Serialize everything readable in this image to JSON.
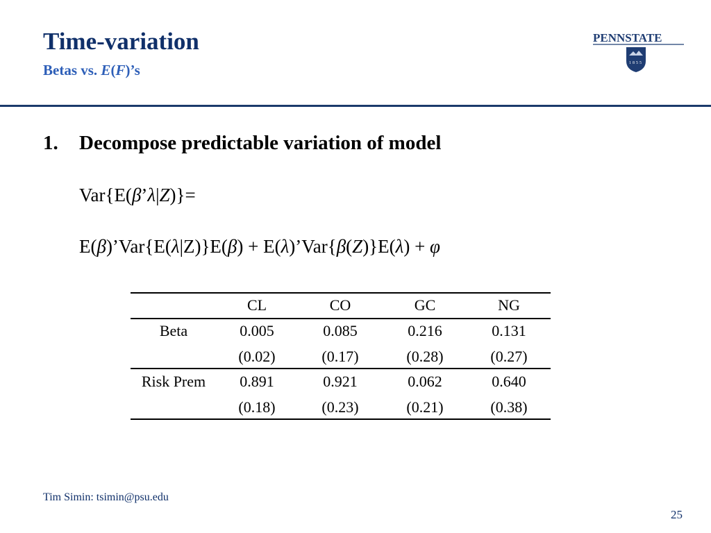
{
  "header": {
    "title": "Time-variation",
    "subtitle": [
      "Betas vs. ",
      "E",
      "(",
      "F",
      ")’s"
    ],
    "logo": {
      "name": "PENNSTATE",
      "year": "1855"
    }
  },
  "body": {
    "item": {
      "number": "1.",
      "text": "Decompose predictable variation of model"
    },
    "equations": [
      [
        "Var{E(",
        "β",
        "’",
        "λ",
        "|",
        "Z",
        ")}="
      ],
      [
        "E(",
        "β",
        ")’Var{E(",
        "λ",
        "|Z)}E(",
        "β",
        ") + E(",
        "λ",
        ")’Var{",
        "β",
        "(",
        "Z",
        ")}E(",
        "λ",
        ") + ",
        "φ"
      ]
    ]
  },
  "table": {
    "columns": [
      "CL",
      "CO",
      "GC",
      "NG"
    ],
    "rows": [
      {
        "label": "Beta",
        "estimates": [
          "0.005",
          "0.085",
          "0.216",
          "0.131"
        ],
        "errors": [
          "(0.02)",
          "(0.17)",
          "(0.28)",
          "(0.27)"
        ]
      },
      {
        "label": "Risk Prem",
        "estimates": [
          "0.891",
          "0.921",
          "0.062",
          "0.640"
        ],
        "errors": [
          "(0.18)",
          "(0.23)",
          "(0.21)",
          "(0.38)"
        ]
      }
    ]
  },
  "footer": {
    "author": "Tim Simin: tsimin@psu.edu",
    "page": "25"
  }
}
